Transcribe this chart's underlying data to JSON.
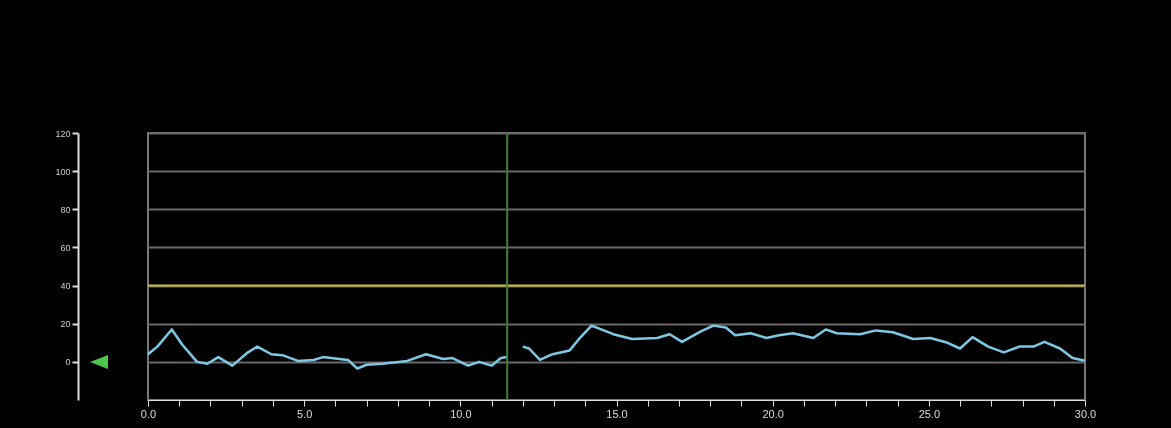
{
  "chart_data": {
    "type": "line",
    "x": [
      0,
      0.3,
      0.76,
      1.1,
      1.57,
      1.9,
      2.25,
      2.7,
      3.2,
      3.5,
      3.95,
      4.3,
      4.8,
      5.3,
      5.6,
      6.4,
      6.7,
      7.0,
      7.5,
      8.3,
      8.9,
      9.45,
      9.75,
      10.25,
      10.6,
      11.0,
      11.3,
      11.5,
      11.75,
      12.0,
      12.2,
      12.55,
      12.95,
      13.5,
      13.8,
      14.2,
      14.9,
      15.5,
      16.3,
      16.7,
      17.1,
      17.7,
      18.1,
      18.5,
      18.8,
      19.3,
      19.8,
      20.2,
      20.65,
      21.3,
      21.7,
      22.05,
      22.8,
      23.3,
      23.85,
      24.5,
      25.05,
      25.6,
      26.0,
      26.4,
      26.9,
      27.4,
      27.9,
      28.35,
      28.7,
      29.2,
      29.6,
      30
    ],
    "series": [
      {
        "color": "#7ec8e6",
        "values": [
          4,
          8,
          17,
          9,
          0,
          -1,
          2.5,
          -2,
          5,
          8,
          4,
          3.5,
          0.5,
          1,
          2.5,
          1,
          -3.5,
          -1.5,
          -1,
          0.5,
          4,
          1.5,
          2,
          -2,
          0,
          -2,
          2,
          2.5,
          null,
          8,
          7,
          1,
          4,
          6,
          12,
          19,
          14.5,
          12,
          12.5,
          14.5,
          10.5,
          16,
          19,
          18,
          14,
          15,
          12.5,
          14,
          15,
          12.5,
          17,
          15,
          14.5,
          16.5,
          15.5,
          12,
          12.5,
          10,
          7,
          13,
          8,
          5,
          8,
          8,
          10.5,
          7,
          2,
          0.5
        ]
      }
    ],
    "xlim": [
      0,
      30
    ],
    "xticks": [
      {
        "value": 0,
        "label": "0.0"
      },
      {
        "value": 1,
        "label": null
      },
      {
        "value": 2,
        "label": null
      },
      {
        "value": 3,
        "label": null
      },
      {
        "value": 4,
        "label": null
      },
      {
        "value": 5,
        "label": "5.0"
      },
      {
        "value": 6,
        "label": null
      },
      {
        "value": 7,
        "label": null
      },
      {
        "value": 8,
        "label": null
      },
      {
        "value": 9,
        "label": null
      },
      {
        "value": 10,
        "label": "10.0"
      },
      {
        "value": 11,
        "label": null
      },
      {
        "value": 12,
        "label": null
      },
      {
        "value": 13,
        "label": null
      },
      {
        "value": 14,
        "label": null
      },
      {
        "value": 15,
        "label": "15.0"
      },
      {
        "value": 16,
        "label": null
      },
      {
        "value": 17,
        "label": null
      },
      {
        "value": 18,
        "label": null
      },
      {
        "value": 19,
        "label": null
      },
      {
        "value": 20,
        "label": "20.0"
      },
      {
        "value": 21,
        "label": null
      },
      {
        "value": 22,
        "label": null
      },
      {
        "value": 23,
        "label": null
      },
      {
        "value": 24,
        "label": null
      },
      {
        "value": 25,
        "label": "25.0"
      },
      {
        "value": 26,
        "label": null
      },
      {
        "value": 27,
        "label": null
      },
      {
        "value": 28,
        "label": null
      },
      {
        "value": 29,
        "label": null
      },
      {
        "value": 30,
        "label": "30.0"
      }
    ],
    "ylim": [
      -20,
      120
    ],
    "yticks": [
      0,
      20,
      40,
      60,
      80,
      100,
      120
    ],
    "grid": "y",
    "ref_lines": [
      {
        "axis": "y",
        "value": 40,
        "color": "#c9b84a"
      },
      {
        "axis": "x",
        "value": 11.5,
        "color": "#3f7f35"
      }
    ],
    "marker": "none",
    "line_style": "solid"
  }
}
